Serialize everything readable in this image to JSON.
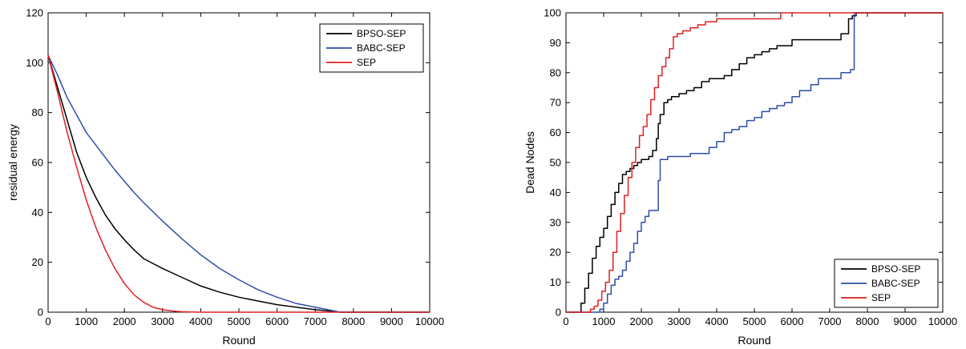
{
  "chart_data": [
    {
      "type": "line",
      "title": "",
      "xlabel": "Round",
      "ylabel": "residual energy",
      "xlim": [
        0,
        10000
      ],
      "ylim": [
        0,
        120
      ],
      "xticks": [
        0,
        1000,
        2000,
        3000,
        4000,
        5000,
        6000,
        7000,
        8000,
        9000,
        10000
      ],
      "yticks": [
        0,
        20,
        40,
        60,
        80,
        100,
        120
      ],
      "legend_position": "top-right",
      "series": [
        {
          "name": "BPSO-SEP",
          "color": "#000000",
          "x": [
            0,
            250,
            500,
            750,
            1000,
            1250,
            1500,
            1750,
            2000,
            2250,
            2500,
            2750,
            3000,
            3500,
            4000,
            4500,
            5000,
            5500,
            6000,
            6500,
            7000,
            7500,
            7650,
            8000,
            9000,
            10000
          ],
          "y": [
            103,
            90,
            77,
            64,
            54,
            46,
            39,
            33.5,
            29,
            25,
            21.5,
            19.5,
            17.5,
            14,
            10.5,
            8,
            6,
            4.5,
            3,
            2,
            1,
            0.3,
            0,
            0,
            0,
            0
          ]
        },
        {
          "name": "BABC-SEP",
          "color": "#2e4ea8",
          "x": [
            0,
            250,
            500,
            750,
            1000,
            1250,
            1500,
            1750,
            2000,
            2250,
            2500,
            3000,
            3500,
            4000,
            4500,
            5000,
            5500,
            6000,
            6500,
            7000,
            7400,
            7650,
            8000,
            9000,
            10000
          ],
          "y": [
            103,
            95,
            86,
            79,
            72,
            67,
            62,
            57,
            52.5,
            48,
            44,
            36.5,
            29.5,
            23,
            17.5,
            13,
            9,
            6,
            3.5,
            2,
            0.8,
            0,
            0,
            0,
            0
          ]
        },
        {
          "name": "SEP",
          "color": "#e02020",
          "x": [
            0,
            250,
            500,
            750,
            1000,
            1250,
            1500,
            1750,
            2000,
            2250,
            2500,
            2750,
            3000,
            3250,
            3500,
            4000,
            5000,
            6000,
            8000,
            10000
          ],
          "y": [
            103,
            88,
            72,
            58,
            45,
            34,
            25,
            17.5,
            11.5,
            7,
            4,
            2,
            1,
            0.5,
            0.2,
            0,
            0,
            0,
            0,
            0
          ]
        }
      ]
    },
    {
      "type": "line",
      "title": "",
      "xlabel": "Round",
      "ylabel": "Dead Nodes",
      "xlim": [
        0,
        10000
      ],
      "ylim": [
        0,
        100
      ],
      "xticks": [
        0,
        1000,
        2000,
        3000,
        4000,
        5000,
        6000,
        7000,
        8000,
        9000,
        10000
      ],
      "yticks": [
        0,
        10,
        20,
        30,
        40,
        50,
        60,
        70,
        80,
        90,
        100
      ],
      "legend_position": "bottom-right",
      "series": [
        {
          "name": "BPSO-SEP",
          "color": "#000000",
          "x": [
            0,
            350,
            400,
            500,
            600,
            700,
            800,
            900,
            1000,
            1100,
            1200,
            1300,
            1400,
            1500,
            1600,
            1700,
            1800,
            1900,
            2000,
            2100,
            2200,
            2300,
            2400,
            2450,
            2500,
            2600,
            2700,
            2800,
            3000,
            3200,
            3400,
            3600,
            3800,
            4000,
            4200,
            4400,
            4600,
            4800,
            5000,
            5200,
            5400,
            5600,
            6000,
            6500,
            7000,
            7300,
            7500,
            7550,
            7600,
            7700,
            8000,
            10000
          ],
          "y": [
            0,
            0,
            3,
            8,
            13,
            18,
            22,
            25,
            28,
            32,
            36,
            40,
            43,
            46,
            47,
            48,
            49,
            50,
            51,
            51,
            52,
            54,
            58,
            63,
            66,
            70,
            71,
            72,
            73,
            74,
            75,
            77,
            78,
            78,
            79,
            81,
            83,
            85,
            86,
            87,
            88,
            89,
            91,
            91,
            91,
            93,
            98,
            98,
            99,
            100,
            100,
            100
          ]
        },
        {
          "name": "BABC-SEP",
          "color": "#2e4ea8",
          "x": [
            0,
            700,
            900,
            1000,
            1100,
            1200,
            1300,
            1400,
            1500,
            1600,
            1700,
            1800,
            1900,
            2000,
            2100,
            2200,
            2300,
            2400,
            2450,
            2500,
            2700,
            3000,
            3300,
            3600,
            3800,
            4000,
            4200,
            4400,
            4600,
            4800,
            5000,
            5200,
            5400,
            5600,
            5800,
            6000,
            6200,
            6500,
            6700,
            7000,
            7300,
            7550,
            7650,
            7700,
            8000,
            10000
          ],
          "y": [
            0,
            0,
            1,
            3,
            6,
            9,
            11,
            12,
            14,
            17,
            20,
            23,
            27,
            30,
            32,
            34,
            34,
            34,
            44,
            51,
            52,
            52,
            53,
            53,
            55,
            57,
            60,
            61,
            62,
            64,
            65,
            67,
            68,
            69,
            70,
            72,
            74,
            76,
            78,
            78,
            80,
            81,
            100,
            100,
            100,
            100
          ]
        },
        {
          "name": "SEP",
          "color": "#e02020",
          "x": [
            0,
            500,
            650,
            750,
            850,
            950,
            1050,
            1150,
            1250,
            1350,
            1450,
            1550,
            1650,
            1750,
            1850,
            1950,
            2050,
            2150,
            2250,
            2350,
            2450,
            2550,
            2650,
            2750,
            2850,
            2950,
            3100,
            3300,
            3500,
            3700,
            4000,
            4500,
            5000,
            5500,
            5700,
            6000,
            7000,
            8000,
            10000
          ],
          "y": [
            0,
            0,
            1,
            2,
            4,
            7,
            10,
            14,
            20,
            27,
            33,
            39,
            45,
            50,
            55,
            59,
            62,
            66,
            71,
            75,
            79,
            82,
            85,
            88,
            92,
            93,
            94,
            95,
            96,
            97,
            98,
            98,
            98,
            98,
            100,
            100,
            100,
            100,
            100
          ]
        }
      ]
    }
  ]
}
